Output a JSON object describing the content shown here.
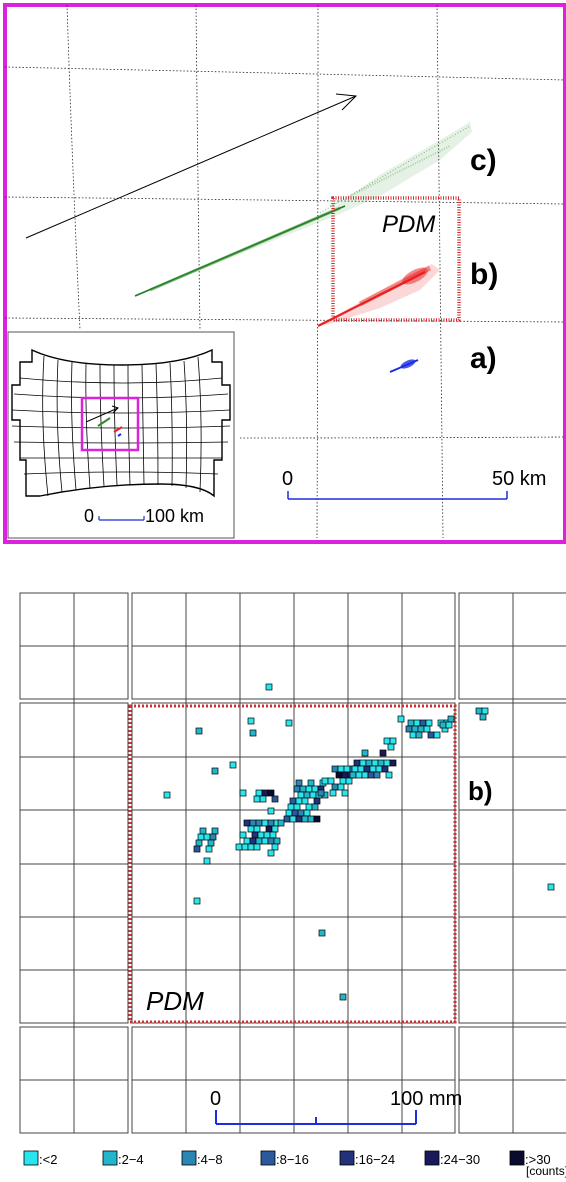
{
  "top_panel": {
    "label_c": "c)",
    "label_b": "b)",
    "label_a": "a)",
    "pdm_label": "PDM",
    "scale_start": "0",
    "scale_end": "50 km",
    "frame_color": "#dd22dd",
    "track_colors": {
      "c": "#2e8b2e",
      "b": "#e82020",
      "a": "#1a2ee0"
    },
    "pdm_color": "#d03030"
  },
  "inset_map": {
    "scale_start": "0",
    "scale_end": "100 km"
  },
  "bottom_panel": {
    "label_b": "b)",
    "pdm_label": "PDM",
    "scale_start": "0",
    "scale_end": "100 mm"
  },
  "legend": {
    "units": "[counts]",
    "entries": [
      {
        "label": ":<2",
        "color": "#29e6ee"
      },
      {
        "label": ":2−4",
        "color": "#22b6cc"
      },
      {
        "label": ":4−8",
        "color": "#2b86b4"
      },
      {
        "label": ":8−16",
        "color": "#2a5a9c"
      },
      {
        "label": ":16−24",
        "color": "#23307a"
      },
      {
        "label": ":24−30",
        "color": "#1a1a5a"
      },
      {
        "label": ":>30",
        "color": "#0b0b2e"
      }
    ]
  }
}
